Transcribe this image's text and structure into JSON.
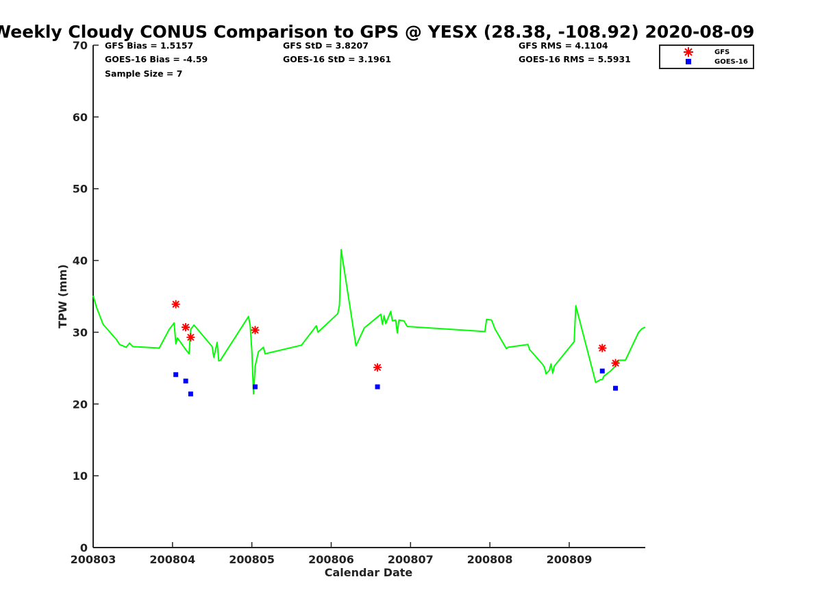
{
  "chart_data": {
    "type": "scatter",
    "title": "Weekly Cloudy CONUS Comparison to GPS @ YESX (28.38, -108.92) 2020-08-09",
    "xlabel": "Calendar Date",
    "ylabel": "TPW (mm)",
    "xlim": [
      "2020-08-03",
      "2020-08-09 23:00"
    ],
    "ylim": [
      0,
      70
    ],
    "x_ticks": [
      "200803",
      "200804",
      "200805",
      "200806",
      "200807",
      "200808",
      "200809"
    ],
    "y_ticks": [
      "0",
      "10",
      "20",
      "30",
      "40",
      "50",
      "60",
      "70"
    ],
    "grid": false,
    "legend_position": "top-right",
    "stats": {
      "gfs_bias": "GFS Bias = 1.5157",
      "goes_bias": "GOES-16 Bias = -4.59",
      "sample_size": "Sample Size = 7",
      "gfs_std": "GFS StD = 3.8207",
      "goes_std": "GOES-16 StD = 3.1961",
      "gfs_rms": "GFS RMS = 4.1104",
      "goes_rms": "GOES-16 RMS = 5.5931"
    },
    "series": [
      {
        "name": "GFS",
        "marker": "asterisk",
        "color": "#ff0000",
        "points": [
          {
            "x": "2020-08-04 01:00",
            "y": 33.9
          },
          {
            "x": "2020-08-04 04:00",
            "y": 30.7
          },
          {
            "x": "2020-08-04 05:30",
            "y": 29.3
          },
          {
            "x": "2020-08-05 01:00",
            "y": 30.3
          },
          {
            "x": "2020-08-06 14:00",
            "y": 25.1
          },
          {
            "x": "2020-08-09 10:00",
            "y": 27.8
          },
          {
            "x": "2020-08-09 14:00",
            "y": 25.7
          }
        ]
      },
      {
        "name": "GOES-16",
        "marker": "square",
        "color": "#0000ff",
        "points": [
          {
            "x": "2020-08-04 01:00",
            "y": 24.1
          },
          {
            "x": "2020-08-04 04:00",
            "y": 23.2
          },
          {
            "x": "2020-08-04 05:30",
            "y": 21.4
          },
          {
            "x": "2020-08-05 01:00",
            "y": 22.4
          },
          {
            "x": "2020-08-06 14:00",
            "y": 22.4
          },
          {
            "x": "2020-08-09 10:00",
            "y": 24.6
          },
          {
            "x": "2020-08-09 14:00",
            "y": 22.2
          }
        ]
      },
      {
        "name": "",
        "type": "line",
        "color": "#00ff00",
        "points": [
          {
            "x": "2020-08-03 00:00",
            "y": 35.1
          },
          {
            "x": "2020-08-03 01:00",
            "y": 33.5
          },
          {
            "x": "2020-08-03 03:00",
            "y": 31.1
          },
          {
            "x": "2020-08-03 07:00",
            "y": 29.0
          },
          {
            "x": "2020-08-03 08:00",
            "y": 28.3
          },
          {
            "x": "2020-08-03 10:00",
            "y": 27.9
          },
          {
            "x": "2020-08-03 11:00",
            "y": 28.5
          },
          {
            "x": "2020-08-03 12:00",
            "y": 28.0
          },
          {
            "x": "2020-08-03 20:00",
            "y": 27.8
          },
          {
            "x": "2020-08-03 23:00",
            "y": 30.4
          },
          {
            "x": "2020-08-04 00:30",
            "y": 31.3
          },
          {
            "x": "2020-08-04 01:00",
            "y": 28.4
          },
          {
            "x": "2020-08-04 01:30",
            "y": 29.2
          },
          {
            "x": "2020-08-04 04:00",
            "y": 27.6
          },
          {
            "x": "2020-08-04 05:00",
            "y": 27.0
          },
          {
            "x": "2020-08-04 05:30",
            "y": 30.4
          },
          {
            "x": "2020-08-04 06:30",
            "y": 31.0
          },
          {
            "x": "2020-08-04 12:00",
            "y": 28.0
          },
          {
            "x": "2020-08-04 12:30",
            "y": 26.5
          },
          {
            "x": "2020-08-04 13:30",
            "y": 28.6
          },
          {
            "x": "2020-08-04 14:00",
            "y": 26.0
          },
          {
            "x": "2020-08-04 14:30",
            "y": 26.1
          },
          {
            "x": "2020-08-04 23:00",
            "y": 32.2
          },
          {
            "x": "2020-08-04 23:30",
            "y": 30.9
          },
          {
            "x": "2020-08-05 00:00",
            "y": 27.3
          },
          {
            "x": "2020-08-05 00:30",
            "y": 21.4
          },
          {
            "x": "2020-08-05 01:00",
            "y": 25.3
          },
          {
            "x": "2020-08-05 02:00",
            "y": 27.3
          },
          {
            "x": "2020-08-05 03:30",
            "y": 27.9
          },
          {
            "x": "2020-08-05 04:00",
            "y": 27.0
          },
          {
            "x": "2020-08-05 15:00",
            "y": 28.2
          },
          {
            "x": "2020-08-05 19:30",
            "y": 30.9
          },
          {
            "x": "2020-08-05 20:00",
            "y": 30.0
          },
          {
            "x": "2020-08-06 02:00",
            "y": 32.6
          },
          {
            "x": "2020-08-06 02:30",
            "y": 33.8
          },
          {
            "x": "2020-08-06 03:00",
            "y": 41.5
          },
          {
            "x": "2020-08-06 07:30",
            "y": 28.1
          },
          {
            "x": "2020-08-06 08:00",
            "y": 28.6
          },
          {
            "x": "2020-08-06 10:00",
            "y": 30.6
          },
          {
            "x": "2020-08-06 15:00",
            "y": 32.5
          },
          {
            "x": "2020-08-06 15:30",
            "y": 31.1
          },
          {
            "x": "2020-08-06 16:00",
            "y": 32.3
          },
          {
            "x": "2020-08-06 16:30",
            "y": 31.2
          },
          {
            "x": "2020-08-06 18:00",
            "y": 32.9
          },
          {
            "x": "2020-08-06 18:30",
            "y": 31.6
          },
          {
            "x": "2020-08-06 19:30",
            "y": 31.7
          },
          {
            "x": "2020-08-06 20:00",
            "y": 29.9
          },
          {
            "x": "2020-08-06 20:30",
            "y": 31.7
          },
          {
            "x": "2020-08-06 22:00",
            "y": 31.6
          },
          {
            "x": "2020-08-06 23:00",
            "y": 30.8
          },
          {
            "x": "2020-08-07 22:30",
            "y": 30.1
          },
          {
            "x": "2020-08-07 23:00",
            "y": 31.8
          },
          {
            "x": "2020-08-08 00:30",
            "y": 31.7
          },
          {
            "x": "2020-08-08 01:30",
            "y": 30.5
          },
          {
            "x": "2020-08-08 05:00",
            "y": 27.7
          },
          {
            "x": "2020-08-08 05:30",
            "y": 27.9
          },
          {
            "x": "2020-08-08 11:30",
            "y": 28.3
          },
          {
            "x": "2020-08-08 12:00",
            "y": 27.6
          },
          {
            "x": "2020-08-08 16:00",
            "y": 25.5
          },
          {
            "x": "2020-08-08 16:30",
            "y": 25.1
          },
          {
            "x": "2020-08-08 17:00",
            "y": 24.2
          },
          {
            "x": "2020-08-08 18:00",
            "y": 24.7
          },
          {
            "x": "2020-08-08 18:30",
            "y": 25.6
          },
          {
            "x": "2020-08-08 19:00",
            "y": 24.3
          },
          {
            "x": "2020-08-08 19:30",
            "y": 25.3
          },
          {
            "x": "2020-08-09 01:30",
            "y": 28.7
          },
          {
            "x": "2020-08-09 02:00",
            "y": 33.7
          },
          {
            "x": "2020-08-09 08:00",
            "y": 23.0
          },
          {
            "x": "2020-08-09 09:30",
            "y": 23.4
          },
          {
            "x": "2020-08-09 10:00",
            "y": 23.4
          },
          {
            "x": "2020-08-09 10:30",
            "y": 23.9
          },
          {
            "x": "2020-08-09 12:30",
            "y": 24.6
          },
          {
            "x": "2020-08-09 14:00",
            "y": 25.3
          },
          {
            "x": "2020-08-09 15:00",
            "y": 26.1
          },
          {
            "x": "2020-08-09 17:00",
            "y": 26.1
          },
          {
            "x": "2020-08-09 21:00",
            "y": 30.0
          },
          {
            "x": "2020-08-09 22:00",
            "y": 30.5
          },
          {
            "x": "2020-08-09 23:00",
            "y": 30.7
          }
        ]
      }
    ]
  }
}
